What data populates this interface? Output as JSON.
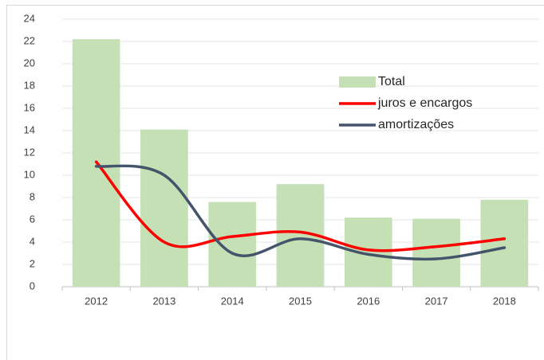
{
  "chart_data": {
    "type": "bar-line",
    "categories": [
      "2012",
      "2013",
      "2014",
      "2015",
      "2016",
      "2017",
      "2018"
    ],
    "series": [
      {
        "name": "Total",
        "type": "bar",
        "color": "#c5e0b4",
        "values": [
          22.2,
          14.1,
          7.6,
          9.2,
          6.2,
          6.1,
          7.8
        ]
      },
      {
        "name": "juros e encargos",
        "type": "line",
        "color": "#ff0000",
        "values": [
          11.2,
          4.0,
          4.5,
          4.9,
          3.3,
          3.6,
          4.3
        ]
      },
      {
        "name": "amortizações",
        "type": "line",
        "color": "#44546a",
        "values": [
          10.8,
          10.0,
          3.0,
          4.3,
          2.9,
          2.5,
          3.5
        ]
      }
    ],
    "ylim": [
      0,
      24
    ],
    "yticks": [
      0,
      2,
      4,
      6,
      8,
      10,
      12,
      14,
      16,
      18,
      20,
      22,
      24
    ],
    "grid": true,
    "legend": "right",
    "smooth": true
  }
}
